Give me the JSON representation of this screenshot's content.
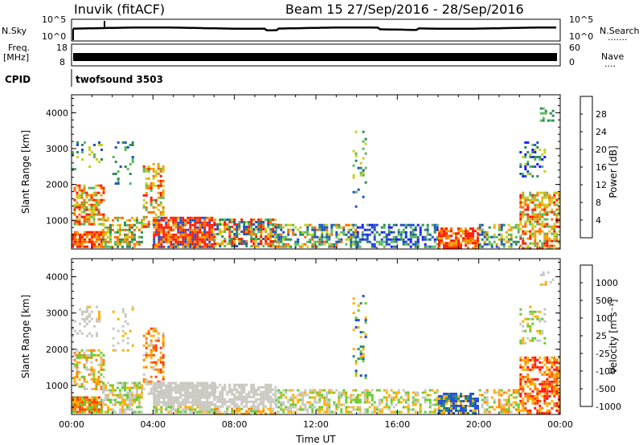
{
  "header": {
    "station": "Inuvik (fitACF)",
    "beam_title": "Beam 15 27/Sep/2016 - 28/Sep/2016"
  },
  "strip_nsky": {
    "left_label": "N.Sky",
    "left_ticks": [
      "10^5",
      "10^0"
    ],
    "right_ticks": [
      "10^5",
      "10^0"
    ],
    "right_label": "N.Search",
    "right_dots": "......."
  },
  "strip_freq": {
    "left_label_1": "Freq.",
    "left_label_2": "[MHz]",
    "left_ticks": [
      "18",
      "8"
    ],
    "right_ticks": [
      "60",
      "0"
    ],
    "right_label": "Nave",
    "right_dots": "...."
  },
  "cpid": {
    "label": "CPID",
    "value": "twofsound 3503"
  },
  "colors": {
    "power": [
      "#1a1aff",
      "#1e50c8",
      "#2e8b57",
      "#5cb85c",
      "#c8d020",
      "#f0a000",
      "#ff6a00",
      "#ff1a00"
    ],
    "velocity": [
      "#2050d0",
      "#2c8c6a",
      "#66cc33",
      "#c8c8c0",
      "#ffb000",
      "#ff8000",
      "#ff4000",
      "#ff1010"
    ]
  },
  "chart_data": [
    {
      "type": "heatmap",
      "title": "Power",
      "ylabel": "Slant Range [km]",
      "xlabel": "",
      "x_ticks": [
        "00:00",
        "04:00",
        "08:00",
        "12:00",
        "16:00",
        "20:00",
        "00:00"
      ],
      "y_ticks": [
        1000,
        2000,
        3000,
        4000
      ],
      "ylim": [
        200,
        4500
      ],
      "xlim_hours": [
        0,
        24
      ],
      "colorbar": {
        "label": "Power [dB]",
        "ticks": [
          4,
          8,
          12,
          16,
          20,
          24,
          28
        ],
        "range": [
          0,
          32
        ]
      }
    },
    {
      "type": "heatmap",
      "title": "Velocity",
      "ylabel": "Slant Range [km]",
      "xlabel": "Time UT",
      "x_ticks": [
        "00:00",
        "04:00",
        "08:00",
        "12:00",
        "16:00",
        "20:00",
        "00:00"
      ],
      "y_ticks": [
        1000,
        2000,
        3000,
        4000
      ],
      "ylim": [
        200,
        4500
      ],
      "xlim_hours": [
        0,
        24
      ],
      "colorbar": {
        "label": "Velocity [m s⁻¹]",
        "ticks": [
          1000,
          500,
          100,
          25,
          -25,
          -100,
          -500,
          -1000
        ]
      }
    }
  ]
}
